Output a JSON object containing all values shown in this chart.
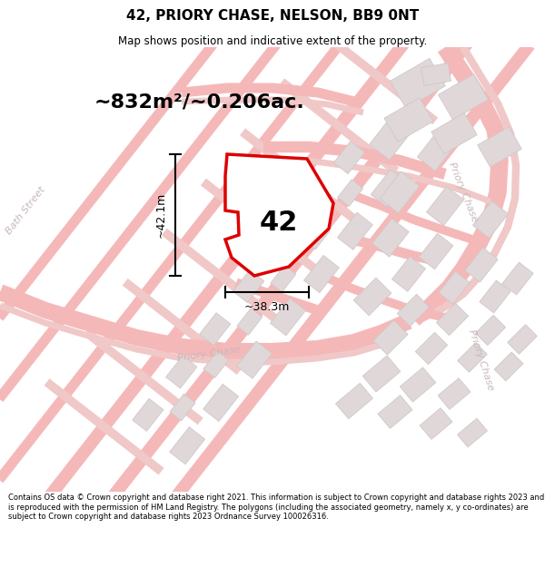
{
  "title_line1": "42, PRIORY CHASE, NELSON, BB9 0NT",
  "title_line2": "Map shows position and indicative extent of the property.",
  "footer_text": "Contains OS data © Crown copyright and database right 2021. This information is subject to Crown copyright and database rights 2023 and is reproduced with the permission of HM Land Registry. The polygons (including the associated geometry, namely x, y co-ordinates) are subject to Crown copyright and database rights 2023 Ordnance Survey 100026316.",
  "area_label": "~832m²/~0.206ac.",
  "property_number": "42",
  "dim_vertical": "~42.1m",
  "dim_horizontal": "~38.3m",
  "map_bg": "#fafafa",
  "road_color": "#f5b8b8",
  "road_color2": "#f0c8c8",
  "building_fill": "#e0d8d8",
  "building_edge": "#d0c8c8",
  "property_fill": "#ffffff",
  "property_edge": "#dd0000",
  "street_label_color": "#c8b8b8",
  "title_fontsize": 11,
  "subtitle_fontsize": 8.5,
  "area_fontsize": 16,
  "num_fontsize": 22,
  "dim_fontsize": 9,
  "street_fontsize": 8
}
